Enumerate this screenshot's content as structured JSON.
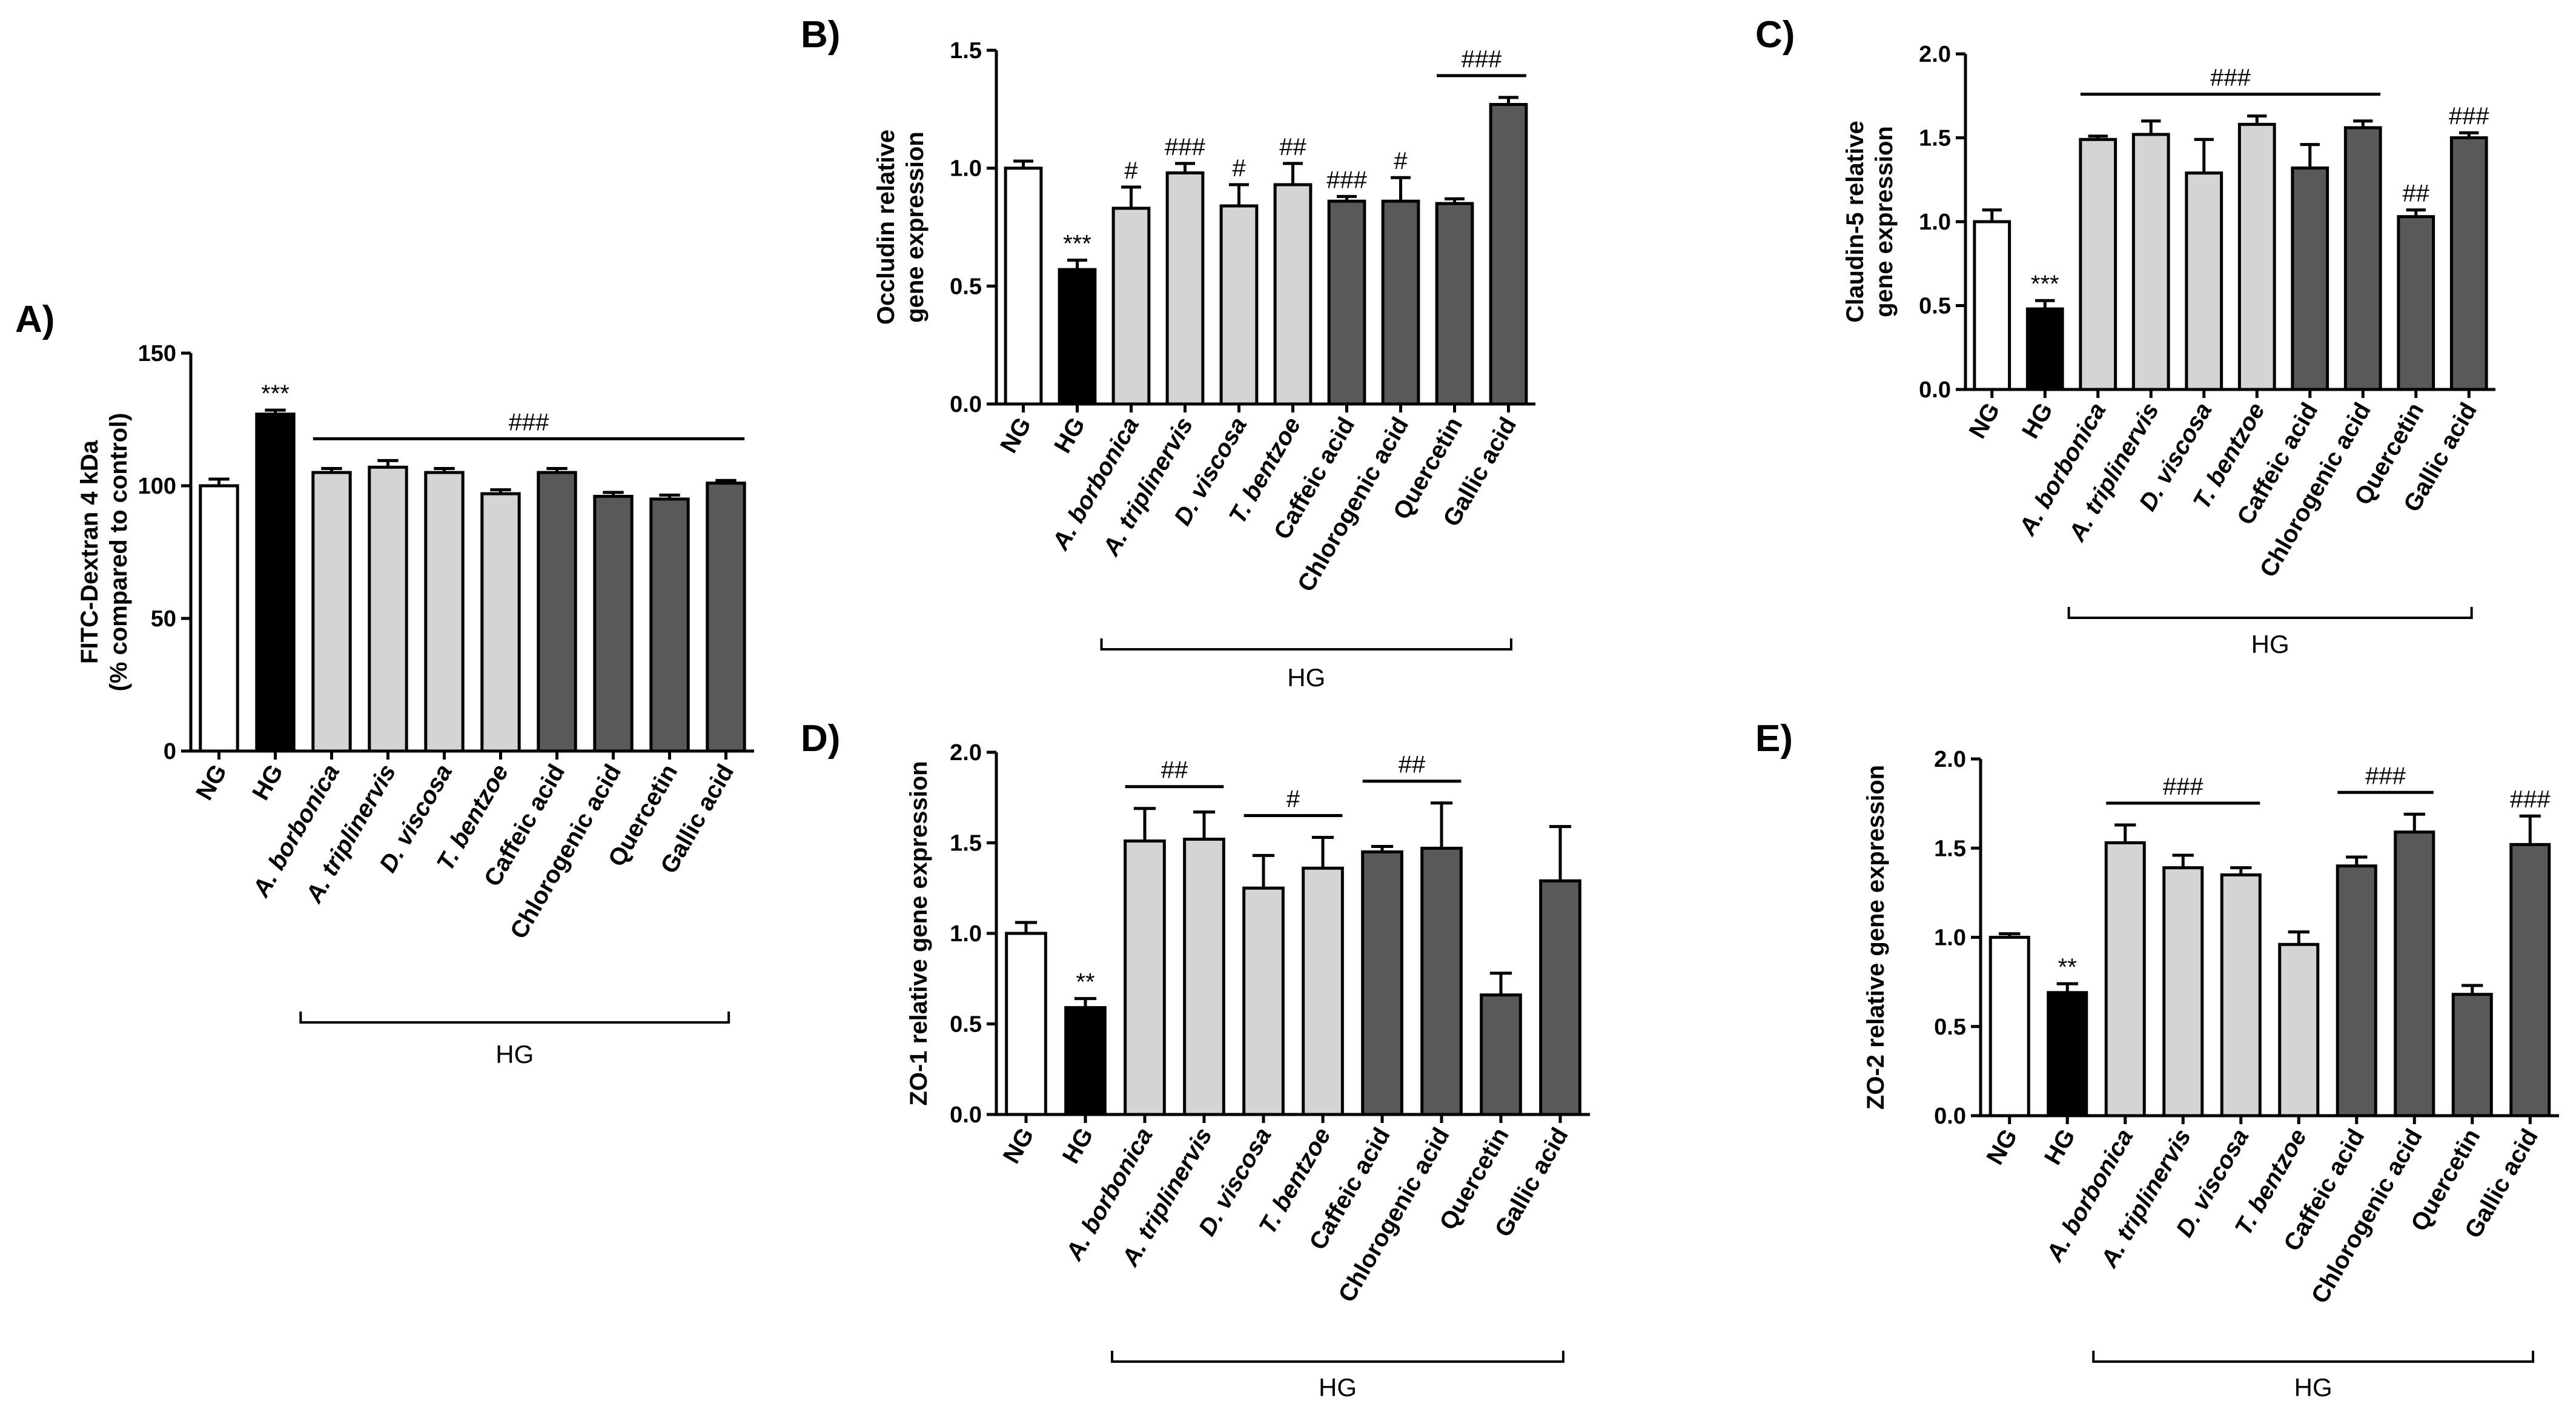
{
  "colors": {
    "NG": "#ffffff",
    "HG": "#000000",
    "extract": "#d4d4d4",
    "compound": "#595959",
    "stroke": "#000000"
  },
  "chart_data": [
    {
      "id": "A",
      "panel_label": "A)",
      "type": "bar",
      "ylabel": [
        "FITC-Dextran 4 kDa",
        "(% compared to control)"
      ],
      "ylim": [
        0,
        150
      ],
      "yticks": [
        "0",
        "50",
        "100",
        "150"
      ],
      "categories": [
        "NG",
        "HG",
        "A. borbonica",
        "A. triplinervis",
        "D. viscosa",
        "T. bentzoe",
        "Caffeic acid",
        "Chlorogenic acid",
        "Quercetin",
        "Gallic acid"
      ],
      "groups": [
        "NG",
        "HG",
        "extract",
        "extract",
        "extract",
        "extract",
        "compound",
        "compound",
        "compound",
        "compound"
      ],
      "values": [
        100,
        127,
        105,
        107,
        105,
        97,
        105,
        96,
        95,
        101
      ],
      "errors": [
        2.5,
        1.5,
        1.5,
        2.5,
        1.5,
        1.5,
        1.5,
        1.5,
        1.5,
        1
      ],
      "bar_marks": [
        {
          "index": 1,
          "text": "***"
        }
      ],
      "bracket_marks": [
        {
          "from": 2,
          "to": 9,
          "text": "###"
        }
      ],
      "group_label": "HG"
    },
    {
      "id": "B",
      "panel_label": "B)",
      "type": "bar",
      "ylabel": [
        "Occludin relative",
        "gene expression"
      ],
      "ylim": [
        0,
        1.5
      ],
      "yticks": [
        "0.0",
        "0.5",
        "1.0",
        "1.5"
      ],
      "categories": [
        "NG",
        "HG",
        "A. borbonica",
        "A. triplinervis",
        "D. viscosa",
        "T. bentzoe",
        "Caffeic acid",
        "Chlorogenic acid",
        "Quercetin",
        "Gallic acid"
      ],
      "groups": [
        "NG",
        "HG",
        "extract",
        "extract",
        "extract",
        "extract",
        "compound",
        "compound",
        "compound",
        "compound"
      ],
      "values": [
        1.0,
        0.57,
        0.83,
        0.98,
        0.84,
        0.93,
        0.86,
        0.86,
        0.85,
        1.27
      ],
      "errors": [
        0.03,
        0.04,
        0.09,
        0.04,
        0.09,
        0.09,
        0.02,
        0.1,
        0.02,
        0.03
      ],
      "bar_marks": [
        {
          "index": 1,
          "text": "***"
        },
        {
          "index": 2,
          "text": "#"
        },
        {
          "index": 3,
          "text": "###"
        },
        {
          "index": 4,
          "text": "#"
        },
        {
          "index": 5,
          "text": "##"
        },
        {
          "index": 6,
          "text": "###"
        },
        {
          "index": 7,
          "text": "#"
        }
      ],
      "bracket_marks": [
        {
          "from": 8,
          "to": 9,
          "text": "###"
        }
      ],
      "group_label": "HG"
    },
    {
      "id": "C",
      "panel_label": "C)",
      "type": "bar",
      "ylabel": [
        "Claudin-5 relative",
        "gene expression"
      ],
      "ylim": [
        0,
        2.0
      ],
      "yticks": [
        "0.0",
        "0.5",
        "1.0",
        "1.5",
        "2.0"
      ],
      "categories": [
        "NG",
        "HG",
        "A. borbonica",
        "A. triplinervis",
        "D. viscosa",
        "T. bentzoe",
        "Caffeic acid",
        "Chlorogenic acid",
        "Quercetin",
        "Gallic acid"
      ],
      "groups": [
        "NG",
        "HG",
        "extract",
        "extract",
        "extract",
        "extract",
        "compound",
        "compound",
        "compound",
        "compound"
      ],
      "values": [
        1.0,
        0.48,
        1.49,
        1.52,
        1.29,
        1.58,
        1.32,
        1.56,
        1.03,
        1.5
      ],
      "errors": [
        0.07,
        0.05,
        0.02,
        0.08,
        0.2,
        0.05,
        0.14,
        0.04,
        0.04,
        0.03
      ],
      "bar_marks": [
        {
          "index": 1,
          "text": "***"
        },
        {
          "index": 8,
          "text": "##"
        },
        {
          "index": 9,
          "text": "###"
        }
      ],
      "bracket_marks": [
        {
          "from": 2,
          "to": 7,
          "text": "###"
        }
      ],
      "group_label": "HG"
    },
    {
      "id": "D",
      "panel_label": "D)",
      "type": "bar",
      "ylabel": [
        "ZO-1 relative gene expression"
      ],
      "ylim": [
        0,
        2.0
      ],
      "yticks": [
        "0.0",
        "0.5",
        "1.0",
        "1.5",
        "2.0"
      ],
      "categories": [
        "NG",
        "HG",
        "A. borbonica",
        "A. triplinervis",
        "D. viscosa",
        "T. bentzoe",
        "Caffeic acid",
        "Chlorogenic acid",
        "Quercetin",
        "Gallic acid"
      ],
      "groups": [
        "NG",
        "HG",
        "extract",
        "extract",
        "extract",
        "extract",
        "compound",
        "compound",
        "compound",
        "compound"
      ],
      "values": [
        1.0,
        0.59,
        1.51,
        1.52,
        1.25,
        1.36,
        1.45,
        1.47,
        0.66,
        1.29
      ],
      "errors": [
        0.06,
        0.05,
        0.18,
        0.15,
        0.18,
        0.17,
        0.03,
        0.25,
        0.12,
        0.3
      ],
      "bar_marks": [
        {
          "index": 1,
          "text": "**"
        }
      ],
      "bracket_marks": [
        {
          "from": 2,
          "to": 3,
          "text": "##"
        },
        {
          "from": 4,
          "to": 5,
          "text": "#"
        },
        {
          "from": 6,
          "to": 7,
          "text": "##"
        }
      ],
      "group_label": "HG"
    },
    {
      "id": "E",
      "panel_label": "E)",
      "type": "bar",
      "ylabel": [
        "ZO-2 relative gene expression"
      ],
      "ylim": [
        0,
        2.0
      ],
      "yticks": [
        "0.0",
        "0.5",
        "1.0",
        "1.5",
        "2.0"
      ],
      "categories": [
        "NG",
        "HG",
        "A. borbonica",
        "A. triplinervis",
        "D. viscosa",
        "T. bentzoe",
        "Caffeic acid",
        "Chlorogenic acid",
        "Quercetin",
        "Gallic acid"
      ],
      "groups": [
        "NG",
        "HG",
        "extract",
        "extract",
        "extract",
        "extract",
        "compound",
        "compound",
        "compound",
        "compound"
      ],
      "values": [
        1.0,
        0.69,
        1.53,
        1.39,
        1.35,
        0.96,
        1.4,
        1.59,
        0.68,
        1.52
      ],
      "errors": [
        0.02,
        0.05,
        0.1,
        0.07,
        0.04,
        0.07,
        0.05,
        0.1,
        0.05,
        0.16
      ],
      "bar_marks": [
        {
          "index": 1,
          "text": "**"
        },
        {
          "index": 9,
          "text": "###"
        }
      ],
      "bracket_marks": [
        {
          "from": 2,
          "to": 4,
          "text": "###"
        },
        {
          "from": 6,
          "to": 7,
          "text": "###"
        }
      ],
      "group_label": "HG"
    }
  ]
}
